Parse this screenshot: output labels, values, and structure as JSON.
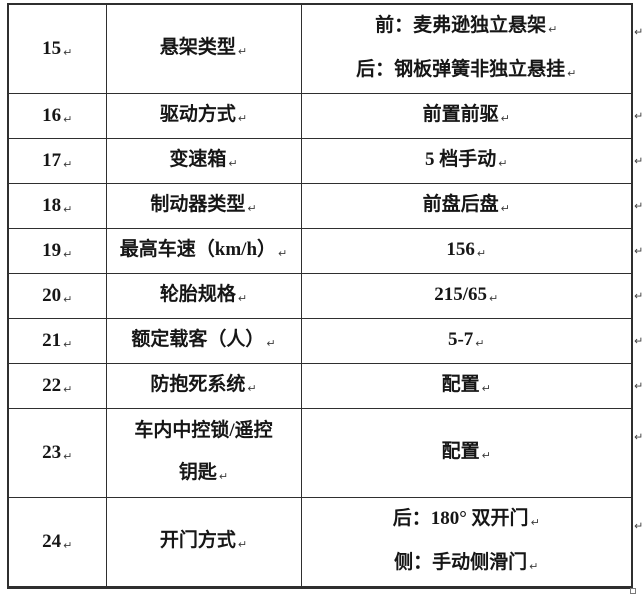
{
  "pmark": "↵",
  "colors": {
    "border": "#2f2f2f",
    "text": "#161616",
    "mark": "#3d3d3d"
  },
  "table": {
    "rows": [
      {
        "num": "15",
        "label_lines": [
          "悬架类型"
        ],
        "value_lines": [
          "前：麦弗逊独立悬架",
          "后：钢板弹簧非独立悬挂"
        ],
        "tall": true
      },
      {
        "num": "16",
        "label_lines": [
          "驱动方式"
        ],
        "value_lines": [
          "前置前驱"
        ],
        "tall": false
      },
      {
        "num": "17",
        "label_lines": [
          "变速箱"
        ],
        "value_lines": [
          "5 档手动"
        ],
        "tall": false
      },
      {
        "num": "18",
        "label_lines": [
          "制动器类型"
        ],
        "value_lines": [
          "前盘后盘"
        ],
        "tall": false
      },
      {
        "num": "19",
        "label_lines": [
          "最高车速（km/h）"
        ],
        "value_lines": [
          "156"
        ],
        "tall": false
      },
      {
        "num": "20",
        "label_lines": [
          "轮胎规格"
        ],
        "value_lines": [
          "215/65"
        ],
        "tall": false
      },
      {
        "num": "21",
        "label_lines": [
          "额定载客（人）"
        ],
        "value_lines": [
          "5-7"
        ],
        "tall": false
      },
      {
        "num": "22",
        "label_lines": [
          "防抱死系统"
        ],
        "value_lines": [
          "配置"
        ],
        "tall": false
      },
      {
        "num": "23",
        "label_lines": [
          "车内中控锁/遥控",
          "钥匙"
        ],
        "value_lines": [
          "配置"
        ],
        "tall": true
      },
      {
        "num": "24",
        "label_lines": [
          "开门方式"
        ],
        "value_lines": [
          "后：180° 双开门",
          "侧：手动侧滑门"
        ],
        "tall": true
      }
    ]
  }
}
